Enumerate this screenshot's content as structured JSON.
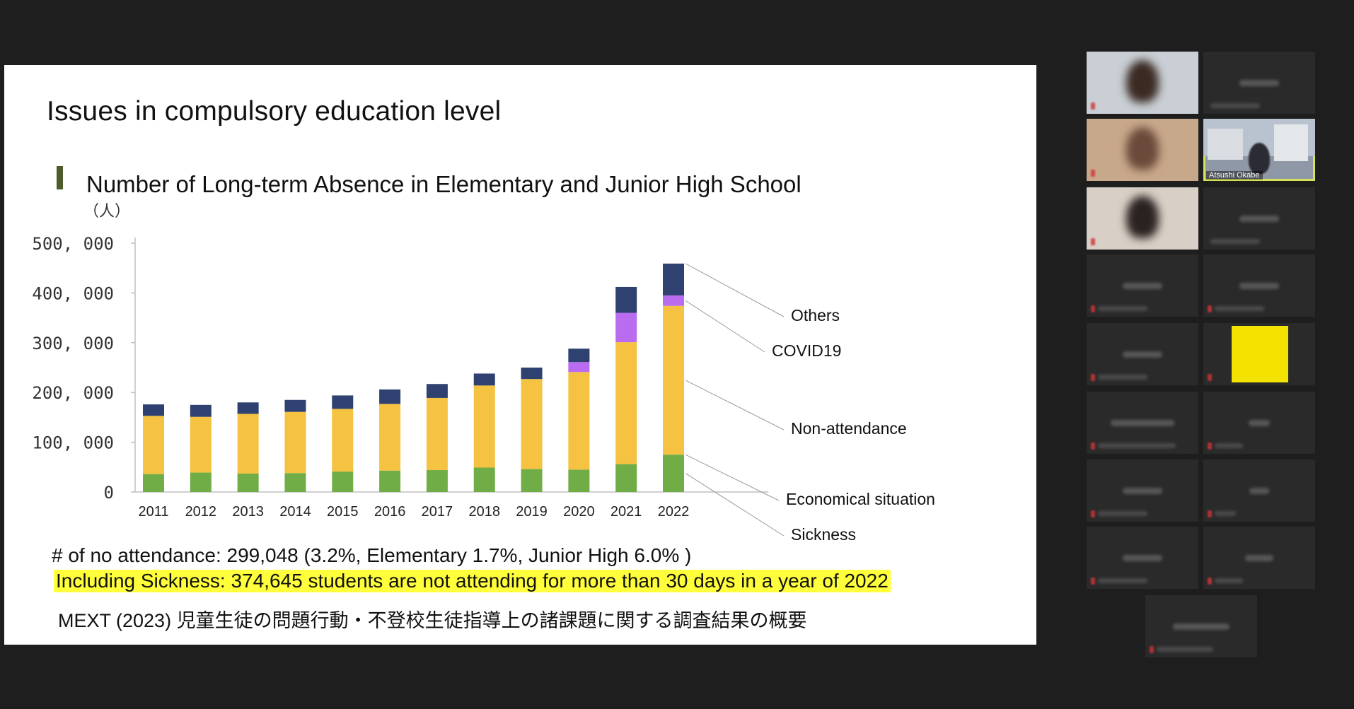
{
  "slide": {
    "title": "Issues in compulsory education level",
    "chart_title": "Number of Long-term Absence in Elementary and Junior High School",
    "unit_label": "（人）",
    "note_line1": "# of no attendance: 299,048  (3.2%, Elementary 1.7%, Junior High 6.0% )",
    "note_line2": "Including Sickness: 374,645 students are not attending for more than 30 days in a year of 2022",
    "source": "MEXT (2023) 児童生徒の問題行動・不登校生徒指導上の諸課題に関する調査結果の概要"
  },
  "chart_data": {
    "type": "bar",
    "stacked": true,
    "categories": [
      "2011",
      "2012",
      "2013",
      "2014",
      "2015",
      "2016",
      "2017",
      "2018",
      "2019",
      "2020",
      "2021",
      "2022"
    ],
    "ylim": [
      0,
      500000
    ],
    "yticks": [
      0,
      100000,
      200000,
      300000,
      400000,
      500000
    ],
    "ytick_labels": [
      "0",
      "100, 000",
      "200, 000",
      "300, 000",
      "400, 000",
      "500, 000"
    ],
    "series": [
      {
        "name": "Sickness",
        "color": "#70ad47",
        "values": [
          36000,
          39000,
          37000,
          38000,
          41000,
          43000,
          44000,
          49000,
          46000,
          45000,
          56000,
          75000
        ]
      },
      {
        "name": "Economical situation",
        "color": "#4f7f2f",
        "values": [
          0,
          0,
          0,
          0,
          0,
          0,
          0,
          0,
          0,
          0,
          0,
          0
        ]
      },
      {
        "name": "Non-attendance",
        "color": "#f5c242",
        "values": [
          117000,
          112000,
          120000,
          123000,
          126000,
          134000,
          145000,
          165000,
          181000,
          196000,
          245000,
          299000
        ]
      },
      {
        "name": "COVID19",
        "color": "#b96cf0",
        "values": [
          0,
          0,
          0,
          0,
          0,
          0,
          0,
          0,
          0,
          20000,
          59000,
          21000
        ]
      },
      {
        "name": "Others",
        "color": "#2e4170",
        "values": [
          23000,
          24000,
          23000,
          24000,
          27000,
          29000,
          28000,
          24000,
          23000,
          27000,
          52000,
          64000
        ]
      }
    ],
    "legend_labels": [
      "Others",
      "COVID19",
      "Non-attendance",
      "Economical situation",
      "Sickness"
    ],
    "legend_placement": "right"
  },
  "gallery": {
    "active_speaker": "Atsushi Okabe"
  }
}
